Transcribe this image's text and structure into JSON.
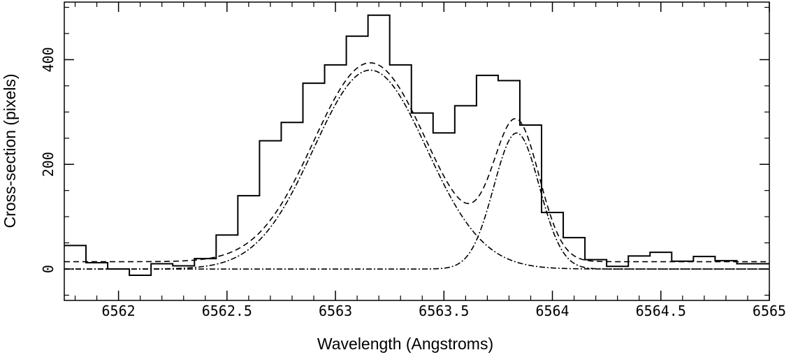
{
  "chart_data": {
    "type": "line",
    "xlabel": "Wavelength (Angstroms)",
    "ylabel": "Cross-section (pixels)",
    "xlim": [
      6561.75,
      6565.0
    ],
    "ylim": [
      -60,
      510
    ],
    "x_ticks_major": [
      6562,
      6562.5,
      6563,
      6563.5,
      6564,
      6564.5,
      6565
    ],
    "x_tick_labels": [
      "6562",
      "6562.5",
      "6563",
      "6563.5",
      "6564",
      "6564.5",
      "6565"
    ],
    "y_ticks_major": [
      0,
      200,
      400
    ],
    "y_tick_labels": [
      "0",
      "200",
      "400"
    ],
    "grid": false,
    "series": [
      {
        "style": "histogram",
        "bin_width": 0.1,
        "bin_left_edges": [
          6561.75,
          6561.85,
          6561.95,
          6562.05,
          6562.15,
          6562.25,
          6562.35,
          6562.45,
          6562.55,
          6562.65,
          6562.75,
          6562.85,
          6562.95,
          6563.05,
          6563.15,
          6563.25,
          6563.35,
          6563.45,
          6563.55,
          6563.65,
          6563.75,
          6563.85,
          6563.95,
          6564.05,
          6564.15,
          6564.25,
          6564.35,
          6564.45,
          6564.55,
          6564.65,
          6564.75,
          6564.85,
          6564.95
        ],
        "values": [
          45,
          12,
          0,
          -12,
          10,
          6,
          20,
          65,
          140,
          245,
          280,
          355,
          390,
          445,
          485,
          390,
          298,
          260,
          312,
          370,
          360,
          275,
          108,
          60,
          18,
          5,
          25,
          32,
          15,
          24,
          16,
          10,
          10
        ]
      },
      {
        "style": "dashed",
        "description_key": "total fit",
        "components": [
          {
            "amplitude": 380,
            "center": 6563.16,
            "sigma": 0.26
          },
          {
            "amplitude": 260,
            "center": 6563.835,
            "sigma": 0.105
          }
        ],
        "baseline": 14
      },
      {
        "style": "dash-dot",
        "amplitude": 380,
        "center": 6563.16,
        "sigma": 0.26
      },
      {
        "style": "dash-dot",
        "amplitude": 260,
        "center": 6563.835,
        "sigma": 0.105
      }
    ]
  }
}
